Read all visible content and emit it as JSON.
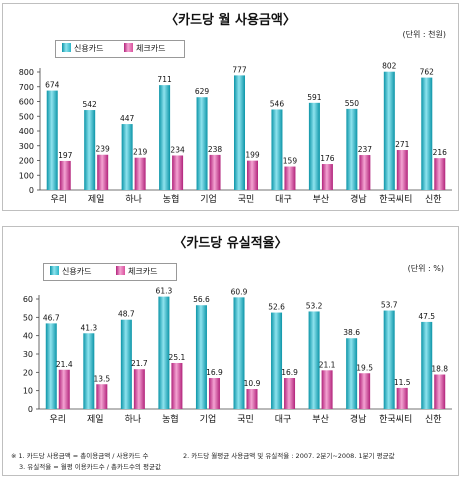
{
  "chart_data": [
    {
      "type": "bar",
      "title": "〈카드당 월 사용금액〉",
      "unit_label": "(단위 : 천원)",
      "categories": [
        "우리",
        "제일",
        "하나",
        "농협",
        "기업",
        "국민",
        "대구",
        "부산",
        "경남",
        "한국씨티",
        "신한"
      ],
      "series": [
        {
          "name": "신용카드",
          "values": [
            674,
            542,
            447,
            711,
            629,
            777,
            546,
            591,
            550,
            802,
            762
          ]
        },
        {
          "name": "체크카드",
          "values": [
            197,
            239,
            219,
            234,
            238,
            199,
            159,
            176,
            237,
            271,
            216
          ]
        }
      ],
      "value_labels": [
        [
          "674",
          "542",
          "447",
          "711",
          "629",
          "777",
          "546",
          "591",
          "550",
          "802",
          "762"
        ],
        [
          "197",
          "239",
          "219",
          "234",
          "238",
          "199",
          "159",
          "176",
          "237",
          "271",
          "216"
        ]
      ],
      "ylim": [
        0,
        800
      ],
      "yticks": [
        "0",
        "100",
        "200",
        "300",
        "400",
        "500",
        "600",
        "700",
        "800"
      ],
      "ytick_values": [
        0,
        100,
        200,
        300,
        400,
        500,
        600,
        700,
        800
      ],
      "grid": false,
      "legend": "top-left"
    },
    {
      "type": "bar",
      "title": "〈카드당 유실적율〉",
      "unit_label": "(단위 : %)",
      "categories": [
        "우리",
        "제일",
        "하나",
        "농협",
        "기업",
        "국민",
        "대구",
        "부산",
        "경남",
        "한국씨티",
        "신한"
      ],
      "series": [
        {
          "name": "신용카드",
          "values": [
            46.7,
            41.3,
            48.7,
            61.3,
            56.6,
            60.9,
            52.6,
            53.2,
            38.6,
            53.7,
            47.5
          ]
        },
        {
          "name": "체크카드",
          "values": [
            21.4,
            13.5,
            21.7,
            25.1,
            16.9,
            10.9,
            16.9,
            21.1,
            19.5,
            11.5,
            18.8
          ]
        }
      ],
      "value_labels": [
        [
          "46.7",
          "41.3",
          "48.7",
          "61.3",
          "56.6",
          "60.9",
          "52.6",
          "53.2",
          "38.6",
          "53.7",
          "47.5"
        ],
        [
          "21.4",
          "13.5",
          "21.7",
          "25.1",
          "16.9",
          "10.9",
          "16.9",
          "21.1",
          "19.5",
          "11.5",
          "18.8"
        ]
      ],
      "ylim": [
        0,
        60
      ],
      "yticks": [
        "0",
        "10",
        "20",
        "30",
        "40",
        "50",
        "60"
      ],
      "ytick_values": [
        0,
        10,
        20,
        30,
        40,
        50,
        60
      ],
      "grid": false,
      "legend": "top-left"
    }
  ],
  "colors": {
    "credit_dark": "#0c95a8",
    "credit_light": "#8ee3ee",
    "check_dark": "#b2237b",
    "check_light": "#f4a3d2",
    "axis": "#444444"
  },
  "footnotes": {
    "line1_a": "※ 1. 카드당 사용금액 = 총이용금액 / 사용카드 수",
    "line1_b": "2. 카드당 월평균 사용금액 및 유실적율 : 2007. 2분기~2008. 1분기 평균값",
    "line2": "3. 유실적율 = 월평 이용카드수 / 총카드수의 평균값"
  }
}
